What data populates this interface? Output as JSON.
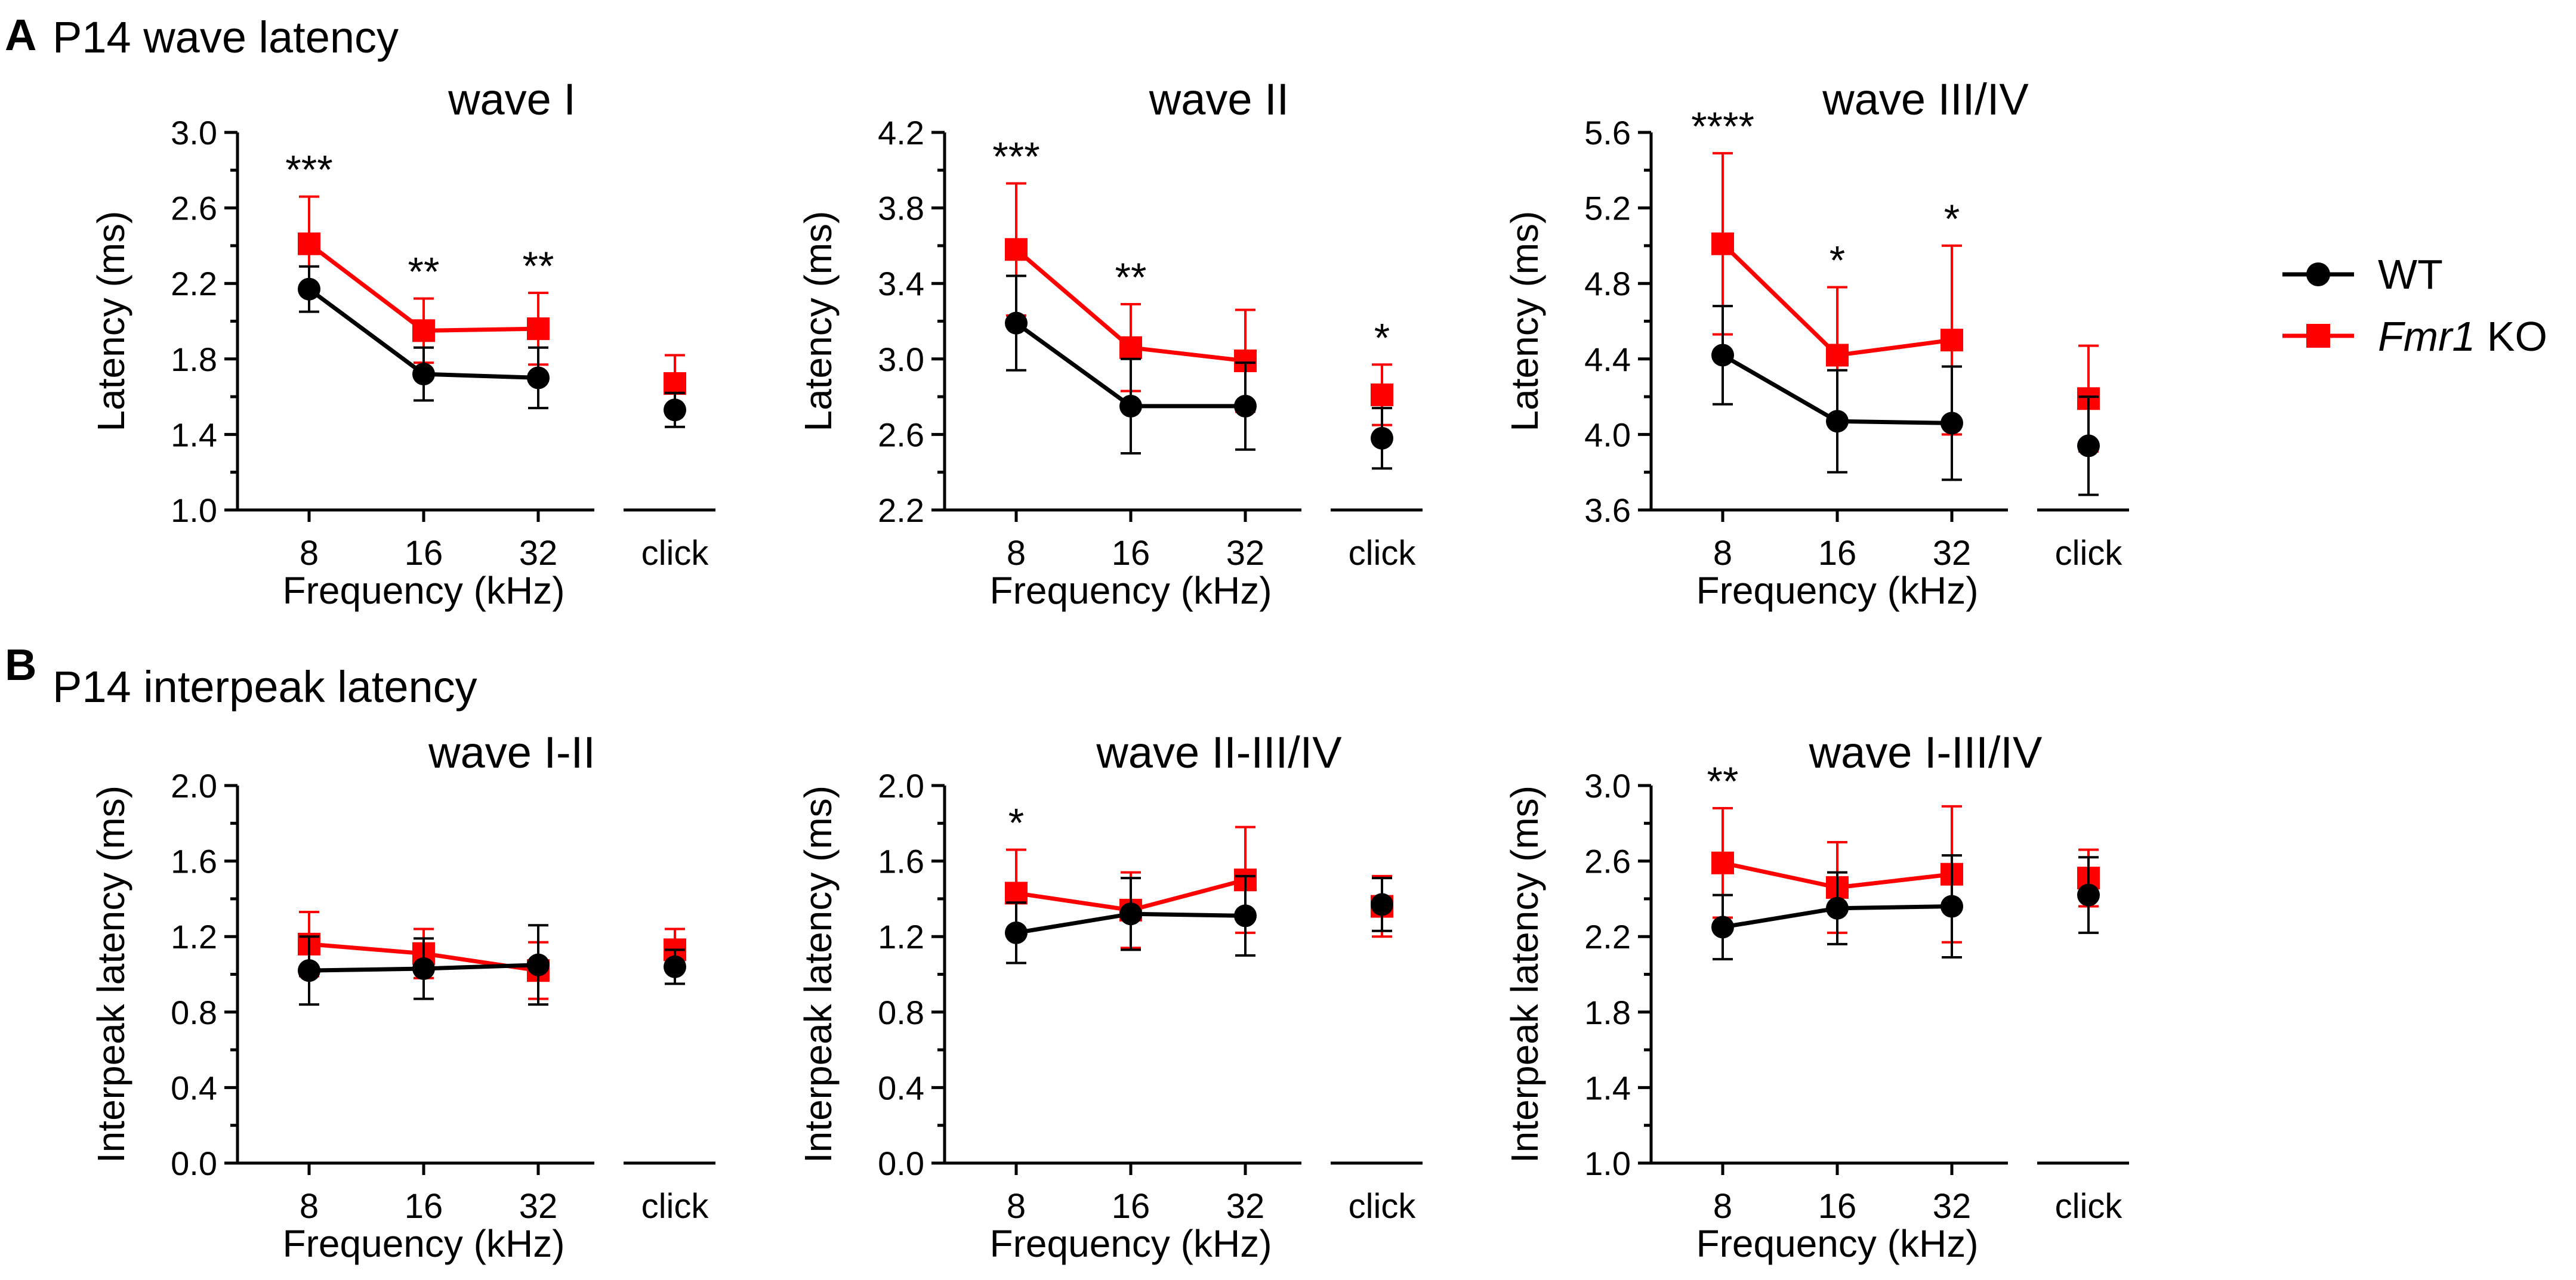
{
  "panels": [
    {
      "letter": "A",
      "title": "P14 wave latency"
    },
    {
      "letter": "B",
      "title": "P14 interpeak latency"
    }
  ],
  "legend": {
    "entries": [
      {
        "name": "WT",
        "italic_part": "",
        "rest": "WT",
        "color": "#000000",
        "marker": "circle"
      },
      {
        "name": "Fmr1 KO",
        "italic_part": "Fmr1",
        "rest": " KO",
        "color": "#ff0000",
        "marker": "square"
      }
    ]
  },
  "chart_data": [
    {
      "type": "line",
      "title": "wave I",
      "xlabel": "Frequency (kHz)",
      "ylabel": "Latency (ms)",
      "ylim": [
        1.0,
        3.0
      ],
      "yticks": [
        "1.0",
        "1.4",
        "1.8",
        "2.2",
        "2.6",
        "3.0"
      ],
      "categories": [
        "8",
        "16",
        "32"
      ],
      "extra_category": "click",
      "series": [
        {
          "name": "WT",
          "color": "#000000",
          "marker": "circle",
          "values": [
            2.17,
            1.72,
            1.7
          ],
          "err": [
            0.12,
            0.14,
            0.16
          ],
          "click": 1.53,
          "click_err": 0.09
        },
        {
          "name": "Fmr1 KO",
          "color": "#ff0000",
          "marker": "square",
          "values": [
            2.41,
            1.95,
            1.96
          ],
          "err": [
            0.25,
            0.17,
            0.19
          ],
          "click": 1.67,
          "click_err": 0.15
        }
      ],
      "significance": [
        "***",
        "**",
        "**",
        ""
      ]
    },
    {
      "type": "line",
      "title": "wave II",
      "xlabel": "Frequency (kHz)",
      "ylabel": "Latency (ms)",
      "ylim": [
        2.2,
        4.2
      ],
      "yticks": [
        "2.2",
        "2.6",
        "3.0",
        "3.4",
        "3.8",
        "4.2"
      ],
      "categories": [
        "8",
        "16",
        "32"
      ],
      "extra_category": "click",
      "series": [
        {
          "name": "WT",
          "color": "#000000",
          "marker": "circle",
          "values": [
            3.19,
            2.75,
            2.75
          ],
          "err": [
            0.25,
            0.25,
            0.23
          ],
          "click": 2.58,
          "click_err": 0.16
        },
        {
          "name": "Fmr1 KO",
          "color": "#ff0000",
          "marker": "square",
          "values": [
            3.58,
            3.06,
            2.99
          ],
          "err": [
            0.35,
            0.23,
            0.27
          ],
          "click": 2.81,
          "click_err": 0.16
        }
      ],
      "significance": [
        "***",
        "**",
        "",
        "*"
      ]
    },
    {
      "type": "line",
      "title": "wave III/IV",
      "xlabel": "Frequency (kHz)",
      "ylabel": "Latency (ms)",
      "ylim": [
        3.6,
        5.6
      ],
      "yticks": [
        "3.6",
        "4.0",
        "4.4",
        "4.8",
        "5.2",
        "5.6"
      ],
      "categories": [
        "8",
        "16",
        "32"
      ],
      "extra_category": "click",
      "series": [
        {
          "name": "WT",
          "color": "#000000",
          "marker": "circle",
          "values": [
            4.42,
            4.07,
            4.06
          ],
          "err": [
            0.26,
            0.27,
            0.3
          ],
          "click": 3.94,
          "click_err": 0.26
        },
        {
          "name": "Fmr1 KO",
          "color": "#ff0000",
          "marker": "square",
          "values": [
            5.01,
            4.42,
            4.5
          ],
          "err": [
            0.48,
            0.36,
            0.5
          ],
          "click": 4.19,
          "click_err": 0.28
        }
      ],
      "significance": [
        "****",
        "*",
        "*",
        ""
      ]
    },
    {
      "type": "line",
      "title": "wave I-II",
      "xlabel": "Frequency (kHz)",
      "ylabel": "Interpeak latency (ms)",
      "ylim": [
        0.0,
        2.0
      ],
      "yticks": [
        "0.0",
        "0.4",
        "0.8",
        "1.2",
        "1.6",
        "2.0"
      ],
      "categories": [
        "8",
        "16",
        "32"
      ],
      "extra_category": "click",
      "series": [
        {
          "name": "WT",
          "color": "#000000",
          "marker": "circle",
          "values": [
            1.02,
            1.03,
            1.05
          ],
          "err": [
            0.18,
            0.16,
            0.21
          ],
          "click": 1.04,
          "click_err": 0.09
        },
        {
          "name": "Fmr1 KO",
          "color": "#ff0000",
          "marker": "square",
          "values": [
            1.16,
            1.11,
            1.02
          ],
          "err": [
            0.17,
            0.13,
            0.15
          ],
          "click": 1.13,
          "click_err": 0.11
        }
      ],
      "significance": [
        "",
        "",
        "",
        ""
      ]
    },
    {
      "type": "line",
      "title": "wave II-III/IV",
      "xlabel": "Frequency (kHz)",
      "ylabel": "Interpeak latency (ms)",
      "ylim": [
        0.0,
        2.0
      ],
      "yticks": [
        "0.0",
        "0.4",
        "0.8",
        "1.2",
        "1.6",
        "2.0"
      ],
      "categories": [
        "8",
        "16",
        "32"
      ],
      "extra_category": "click",
      "series": [
        {
          "name": "WT",
          "color": "#000000",
          "marker": "circle",
          "values": [
            1.22,
            1.32,
            1.31
          ],
          "err": [
            0.16,
            0.19,
            0.21
          ],
          "click": 1.37,
          "click_err": 0.14
        },
        {
          "name": "Fmr1 KO",
          "color": "#ff0000",
          "marker": "square",
          "values": [
            1.43,
            1.34,
            1.5
          ],
          "err": [
            0.23,
            0.2,
            0.28
          ],
          "click": 1.36,
          "click_err": 0.16
        }
      ],
      "significance": [
        "*",
        "",
        "",
        ""
      ]
    },
    {
      "type": "line",
      "title": "wave I-III/IV",
      "xlabel": "Frequency (kHz)",
      "ylabel": "Interpeak latency (ms)",
      "ylim": [
        1.0,
        3.0
      ],
      "yticks": [
        "1.0",
        "1.4",
        "1.8",
        "2.2",
        "2.6",
        "3.0"
      ],
      "categories": [
        "8",
        "16",
        "32"
      ],
      "extra_category": "click",
      "series": [
        {
          "name": "WT",
          "color": "#000000",
          "marker": "circle",
          "values": [
            2.25,
            2.35,
            2.36
          ],
          "err": [
            0.17,
            0.19,
            0.27
          ],
          "click": 2.42,
          "click_err": 0.2
        },
        {
          "name": "Fmr1 KO",
          "color": "#ff0000",
          "marker": "square",
          "values": [
            2.59,
            2.46,
            2.53
          ],
          "err": [
            0.29,
            0.24,
            0.36
          ],
          "click": 2.51,
          "click_err": 0.15
        }
      ],
      "significance": [
        "**",
        "",
        "",
        ""
      ]
    }
  ]
}
